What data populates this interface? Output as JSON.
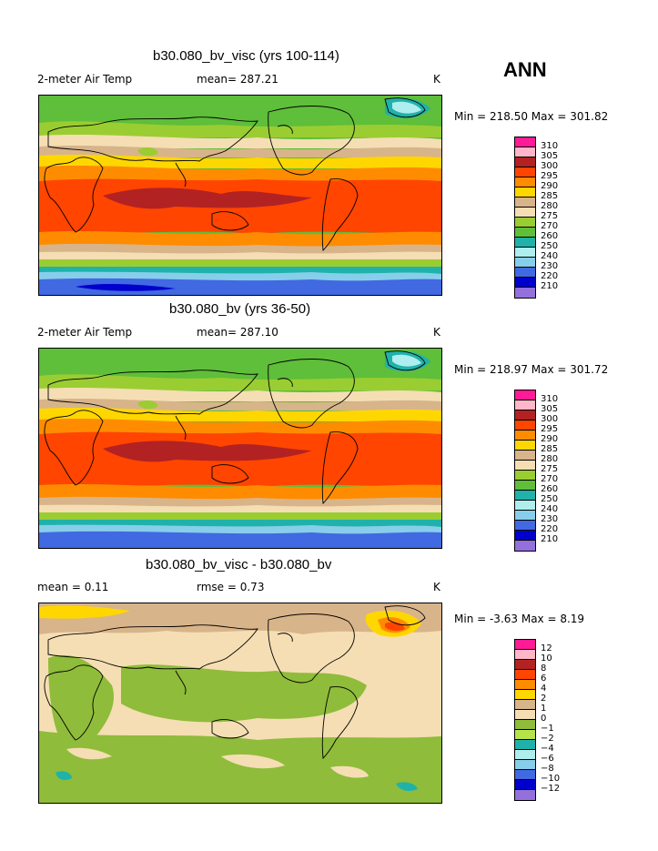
{
  "header": {
    "season": "ANN"
  },
  "panels": [
    {
      "title": "b30.080_bv_visc (yrs 100-114)",
      "left_label": "2-meter Air Temp",
      "center_label": "mean= 287.21",
      "right_label": "K",
      "range_label": "Min = 218.50 Max = 301.82"
    },
    {
      "title": "b30.080_bv (yrs 36-50)",
      "left_label": "2-meter Air Temp",
      "center_label": "mean= 287.10",
      "right_label": "K",
      "range_label": "Min = 218.97 Max = 301.72"
    },
    {
      "title": "b30.080_bv_visc - b30.080_bv",
      "left_label": "mean =    0.11",
      "center_label": "rmse =    0.73",
      "right_label": "K",
      "range_label": "Min =   -3.63 Max =    8.19"
    }
  ],
  "legend_abs": {
    "colors": [
      "#ff1a96",
      "#ffb6c8",
      "#b22222",
      "#ff4500",
      "#ff8c00",
      "#ffd700",
      "#d8b48a",
      "#f5deb3",
      "#9acd32",
      "#5fbe3a",
      "#20b2aa",
      "#afeeee",
      "#87ceeb",
      "#4169e1",
      "#0000cd",
      "#9370db"
    ],
    "labels": [
      "310",
      "305",
      "300",
      "295",
      "290",
      "285",
      "280",
      "275",
      "270",
      "260",
      "250",
      "240",
      "230",
      "220",
      "210"
    ]
  },
  "legend_diff": {
    "colors": [
      "#ff1a96",
      "#ffb6c8",
      "#b22222",
      "#ff4500",
      "#ff8c00",
      "#ffd700",
      "#d8b48a",
      "#f5deb3",
      "#8fbc3a",
      "#b7e34a",
      "#20b2aa",
      "#afeeee",
      "#87ceeb",
      "#4169e1",
      "#0000cd",
      "#9370db"
    ],
    "labels": [
      "12",
      "10",
      "8",
      "6",
      "4",
      "2",
      "1",
      "0",
      "−1",
      "−2",
      "−4",
      "−6",
      "−8",
      "−10",
      "−12"
    ]
  }
}
